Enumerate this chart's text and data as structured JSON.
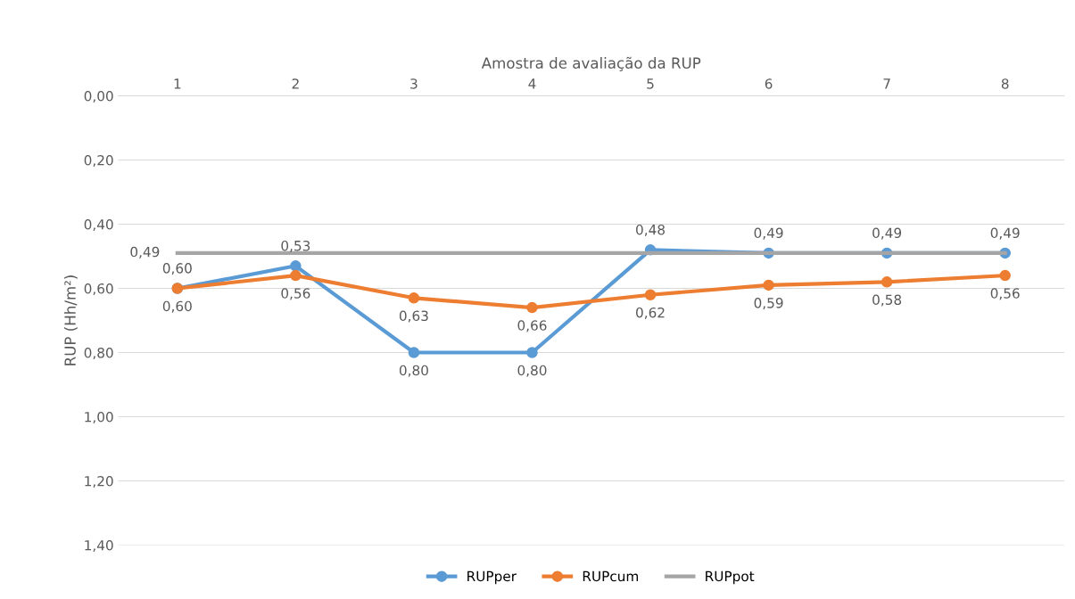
{
  "chart_data": {
    "type": "line",
    "xlabel": "Amostra de avaliação da RUP",
    "ylabel": "RUP (Hh/m²)",
    "categories": [
      "1",
      "2",
      "3",
      "4",
      "5",
      "6",
      "7",
      "8"
    ],
    "ylim": [
      1.4,
      0
    ],
    "yticks": [
      {
        "value": 0,
        "label": "0,00"
      },
      {
        "value": 0.2,
        "label": "0,20"
      },
      {
        "value": 0.4,
        "label": "0,40"
      },
      {
        "value": 0.6,
        "label": "0,60"
      },
      {
        "value": 0.8,
        "label": "0,80"
      },
      {
        "value": 1.0,
        "label": "1,00"
      },
      {
        "value": 1.2,
        "label": "1,20"
      },
      {
        "value": 1.4,
        "label": "1,40"
      }
    ],
    "grid": "y",
    "legend": "bottom",
    "line_style": "solid",
    "series": [
      {
        "name": "RUPper",
        "color": "#5b9bd5",
        "marker": "circle",
        "values": [
          0.6,
          0.53,
          0.8,
          0.8,
          0.48,
          0.49,
          0.49,
          0.49
        ],
        "value_labels": [
          "0,60",
          "0,53",
          "0,80",
          "0,80",
          "0,48",
          "0,49",
          "0,49",
          "0,49"
        ]
      },
      {
        "name": "RUPcum",
        "color": "#ed7d31",
        "marker": "circle",
        "values": [
          0.6,
          0.56,
          0.63,
          0.66,
          0.62,
          0.59,
          0.58,
          0.56
        ],
        "value_labels": [
          "0,60",
          "0,56",
          "0,63",
          "0,66",
          "0,62",
          "0,59",
          "0,58",
          "0,56"
        ]
      },
      {
        "name": "RUPpot",
        "color": "#a5a5a5",
        "marker": "none",
        "values": [
          0.49,
          0.49,
          0.49,
          0.49,
          0.49,
          0.49,
          0.49,
          0.49
        ],
        "value_labels": [
          "0,49",
          null,
          null,
          null,
          null,
          null,
          null,
          null
        ]
      }
    ]
  }
}
